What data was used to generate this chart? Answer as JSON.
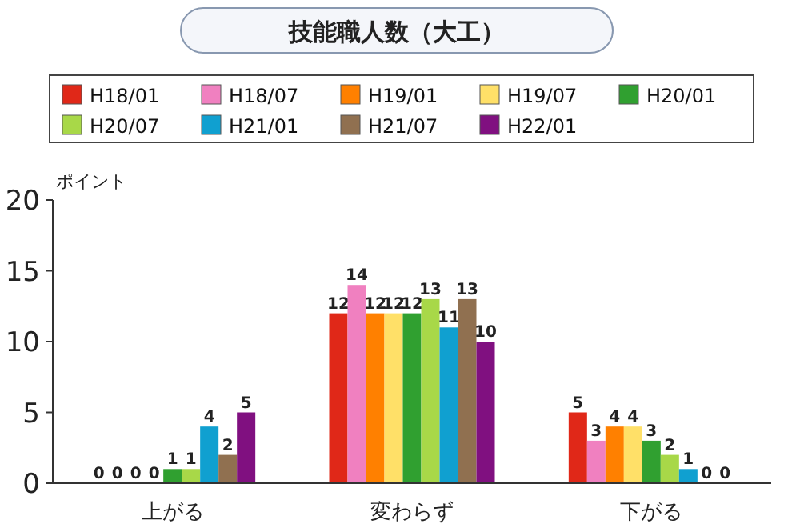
{
  "chart_data": {
    "type": "bar",
    "title": "技能職人数（大工）",
    "ylabel": "ポイント",
    "categories": [
      "上がる",
      "変わらず",
      "下がる"
    ],
    "series": [
      {
        "name": "H18/01",
        "color": "#e02818",
        "values": [
          0,
          12,
          5
        ]
      },
      {
        "name": "H18/07",
        "color": "#f080c0",
        "values": [
          0,
          14,
          3
        ]
      },
      {
        "name": "H19/01",
        "color": "#ff8000",
        "values": [
          0,
          12,
          4
        ]
      },
      {
        "name": "H19/07",
        "color": "#ffe068",
        "values": [
          0,
          12,
          4
        ]
      },
      {
        "name": "H20/01",
        "color": "#30a030",
        "values": [
          1,
          12,
          3
        ]
      },
      {
        "name": "H20/07",
        "color": "#a8d848",
        "values": [
          1,
          13,
          2
        ]
      },
      {
        "name": "H21/01",
        "color": "#10a0d0",
        "values": [
          4,
          11,
          1
        ]
      },
      {
        "name": "H21/07",
        "color": "#907050",
        "values": [
          2,
          13,
          0
        ]
      },
      {
        "name": "H22/01",
        "color": "#801080",
        "values": [
          5,
          10,
          0
        ]
      }
    ],
    "ylim": [
      0,
      20
    ],
    "yticks": [
      0,
      5,
      10,
      15,
      20
    ],
    "data_labels": true,
    "legend": "top"
  }
}
